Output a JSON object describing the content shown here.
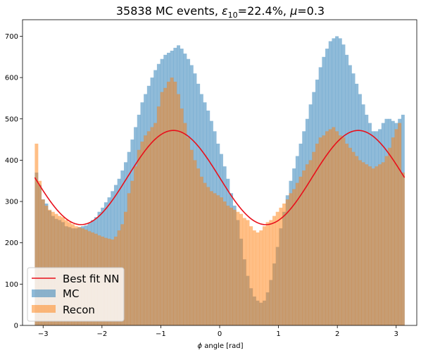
{
  "chart_data": {
    "type": "bar",
    "title_main": "35838 MC events, ",
    "title_eps_symbol": "ε",
    "title_eps_sub": "10",
    "title_eps_value": "=22.4%, ",
    "title_mu_symbol": "μ",
    "title_mu_value": "=0.3",
    "xlabel_symbol": "ϕ",
    "xlabel_text": " angle [rad]",
    "ylabel": "",
    "xlim": [
      -3.35,
      3.35
    ],
    "ylim": [
      0,
      740
    ],
    "x_ticks": [
      -3,
      -2,
      -1,
      0,
      1,
      2,
      3
    ],
    "x_tick_labels": [
      "−3",
      "−2",
      "−1",
      "0",
      "1",
      "2",
      "3"
    ],
    "y_ticks": [
      0,
      100,
      200,
      300,
      400,
      500,
      600,
      700
    ],
    "y_tick_labels": [
      "0",
      "100",
      "200",
      "300",
      "400",
      "500",
      "600",
      "700"
    ],
    "grid": false,
    "legend_position": "lower-left",
    "bin_range": [
      -3.14159,
      3.14159
    ],
    "series": [
      {
        "name": "MC",
        "kind": "histogram",
        "color": "#1f77b4",
        "alpha": 0.5,
        "values": [
          370,
          340,
          305,
          295,
          278,
          265,
          258,
          255,
          250,
          240,
          238,
          235,
          235,
          238,
          240,
          242,
          248,
          255,
          262,
          275,
          285,
          298,
          310,
          325,
          340,
          355,
          375,
          395,
          420,
          450,
          480,
          510,
          540,
          560,
          580,
          600,
          618,
          633,
          645,
          655,
          660,
          665,
          672,
          678,
          670,
          658,
          645,
          630,
          610,
          585,
          560,
          540,
          520,
          495,
          470,
          440,
          415,
          385,
          355,
          320,
          290,
          255,
          210,
          160,
          120,
          90,
          70,
          60,
          55,
          60,
          80,
          110,
          150,
          190,
          235,
          275,
          315,
          350,
          380,
          410,
          440,
          470,
          500,
          535,
          565,
          595,
          625,
          650,
          670,
          688,
          695,
          700,
          695,
          680,
          655,
          630,
          610,
          585,
          560,
          535,
          510,
          490,
          470,
          470,
          475,
          490,
          500,
          500,
          495,
          490,
          500,
          510
        ]
      },
      {
        "name": "Recon",
        "kind": "histogram",
        "color": "#ff7f0e",
        "alpha": 0.5,
        "values": [
          440,
          350,
          305,
          290,
          280,
          275,
          270,
          265,
          262,
          255,
          250,
          245,
          240,
          238,
          235,
          232,
          228,
          225,
          222,
          218,
          215,
          212,
          210,
          208,
          215,
          230,
          245,
          275,
          320,
          350,
          385,
          425,
          445,
          460,
          470,
          480,
          490,
          530,
          565,
          575,
          590,
          600,
          590,
          560,
          525,
          490,
          455,
          425,
          400,
          380,
          360,
          345,
          335,
          325,
          320,
          315,
          310,
          300,
          290,
          285,
          280,
          275,
          270,
          260,
          255,
          240,
          230,
          225,
          230,
          240,
          250,
          255,
          265,
          275,
          285,
          295,
          305,
          320,
          330,
          345,
          360,
          375,
          390,
          400,
          420,
          440,
          455,
          460,
          470,
          475,
          480,
          470,
          460,
          455,
          440,
          430,
          420,
          410,
          400,
          395,
          390,
          385,
          380,
          385,
          390,
          395,
          410,
          430,
          455,
          475,
          490,
          370
        ]
      }
    ],
    "fit_line": {
      "name": "Best fit NN",
      "color": "#e8101b",
      "baseline": 358,
      "amplitude": 114,
      "formula": "358 - 114*cos(2*(x - 0.785))"
    }
  }
}
